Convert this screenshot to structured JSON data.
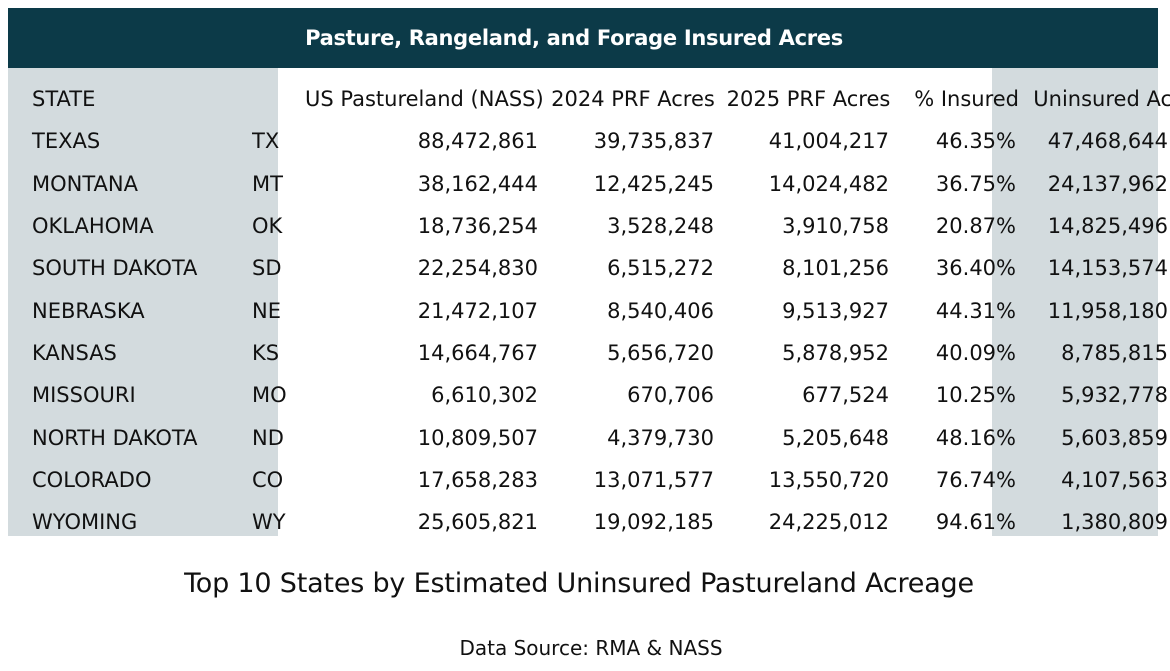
{
  "table": {
    "title": "Pasture, Rangeland, and Forage Insured Acres",
    "headers": {
      "state": "STATE",
      "abbr": "",
      "pasture": "US Pastureland (NASS)",
      "prf_2024": "2024 PRF Acres",
      "prf_2025": "2025 PRF Acres",
      "pct_insured": "% Insured",
      "uninsured": "Uninsured Ac."
    },
    "rows": [
      {
        "state": "TEXAS",
        "abbr": "TX",
        "pasture": "88,472,861",
        "prf_2024": "39,735,837",
        "prf_2025": "41,004,217",
        "pct_insured": "46.35%",
        "uninsured": "47,468,644"
      },
      {
        "state": "MONTANA",
        "abbr": "MT",
        "pasture": "38,162,444",
        "prf_2024": "12,425,245",
        "prf_2025": "14,024,482",
        "pct_insured": "36.75%",
        "uninsured": "24,137,962"
      },
      {
        "state": "OKLAHOMA",
        "abbr": "OK",
        "pasture": "18,736,254",
        "prf_2024": "3,528,248",
        "prf_2025": "3,910,758",
        "pct_insured": "20.87%",
        "uninsured": "14,825,496"
      },
      {
        "state": "SOUTH DAKOTA",
        "abbr": "SD",
        "pasture": "22,254,830",
        "prf_2024": "6,515,272",
        "prf_2025": "8,101,256",
        "pct_insured": "36.40%",
        "uninsured": "14,153,574"
      },
      {
        "state": "NEBRASKA",
        "abbr": "NE",
        "pasture": "21,472,107",
        "prf_2024": "8,540,406",
        "prf_2025": "9,513,927",
        "pct_insured": "44.31%",
        "uninsured": "11,958,180"
      },
      {
        "state": "KANSAS",
        "abbr": "KS",
        "pasture": "14,664,767",
        "prf_2024": "5,656,720",
        "prf_2025": "5,878,952",
        "pct_insured": "40.09%",
        "uninsured": "8,785,815"
      },
      {
        "state": "MISSOURI",
        "abbr": "MO",
        "pasture": "6,610,302",
        "prf_2024": "670,706",
        "prf_2025": "677,524",
        "pct_insured": "10.25%",
        "uninsured": "5,932,778"
      },
      {
        "state": "NORTH DAKOTA",
        "abbr": "ND",
        "pasture": "10,809,507",
        "prf_2024": "4,379,730",
        "prf_2025": "5,205,648",
        "pct_insured": "48.16%",
        "uninsured": "5,603,859"
      },
      {
        "state": "COLORADO",
        "abbr": "CO",
        "pasture": "17,658,283",
        "prf_2024": "13,071,577",
        "prf_2025": "13,550,720",
        "pct_insured": "76.74%",
        "uninsured": "4,107,563"
      },
      {
        "state": "WYOMING",
        "abbr": "WY",
        "pasture": "25,605,821",
        "prf_2024": "19,092,185",
        "prf_2025": "24,225,012",
        "pct_insured": "94.61%",
        "uninsured": "1,380,809"
      }
    ]
  },
  "caption": {
    "main": "Top 10 States by Estimated Uninsured Pastureland Acreage",
    "source": "Data Source: RMA & NASS"
  },
  "colors": {
    "title_bar": "#0c3a48",
    "title_text": "#ffffff",
    "highlight_column": "#d3dbde",
    "text": "#111111"
  }
}
